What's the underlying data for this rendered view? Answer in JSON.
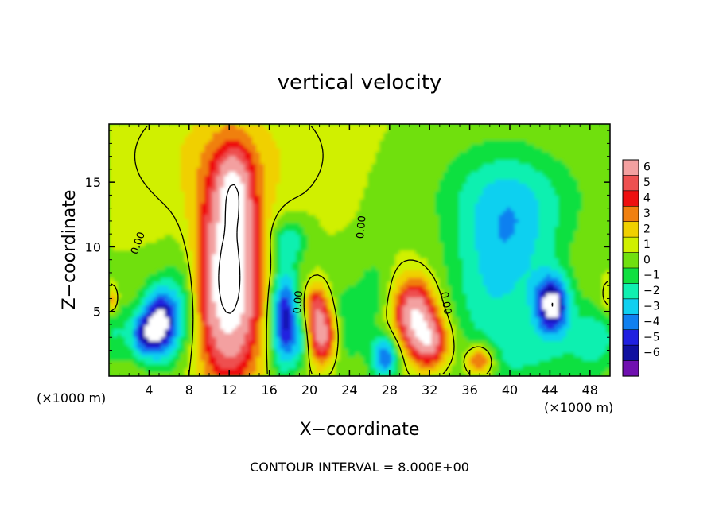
{
  "chart_data": {
    "type": "heatmap",
    "title": "vertical velocity",
    "xlabel": "X−coordinate",
    "ylabel": "Z−coordinate",
    "x_unit_label": "(×1000 m)",
    "y_unit_label": "(×1000 m)",
    "footer": "CONTOUR INTERVAL = 8.000E+00",
    "xlim": [
      0,
      50
    ],
    "ylim": [
      0,
      19.5
    ],
    "x_ticks": [
      4,
      8,
      12,
      16,
      20,
      24,
      28,
      32,
      36,
      40,
      44,
      48
    ],
    "x_tick_labels": [
      "4",
      "8",
      "12",
      "16",
      "20",
      "24",
      "28",
      "32",
      "36",
      "40",
      "44",
      "48"
    ],
    "y_ticks": [
      5,
      10,
      15
    ],
    "y_tick_labels": [
      "5",
      "10",
      "15"
    ],
    "contour_labels": [
      {
        "text": "0.00",
        "x": 3.2,
        "y": 10.2,
        "rotate": -70
      },
      {
        "text": "0.00",
        "x": 19.2,
        "y": 5.7,
        "rotate": -85
      },
      {
        "text": "0.00",
        "x": 25.5,
        "y": 11.5,
        "rotate": -85
      },
      {
        "text": "0.00",
        "x": 33.3,
        "y": 5.6,
        "rotate": 80
      }
    ],
    "colorbar": {
      "levels": [
        "6",
        "5",
        "4",
        "3",
        "2",
        "1",
        "0",
        "−1",
        "−2",
        "−3",
        "−4",
        "−5",
        "−6"
      ],
      "colors": [
        "#f3a0a0",
        "#ee5050",
        "#ee1010",
        "#f08010",
        "#f0d000",
        "#d0f000",
        "#70e010",
        "#10e040",
        "#10f0b0",
        "#10d0f0",
        "#1080f0",
        "#2020e0",
        "#1010a0",
        "#7010b0"
      ]
    },
    "fields": {
      "background": "#30e010",
      "cells": [
        {
          "x": 12,
          "y": 7.5,
          "sx": 2.2,
          "sy": 5.5,
          "v": 9
        },
        {
          "x": 12.5,
          "y": 14.5,
          "sx": 1.2,
          "sy": 2.2,
          "v": 3.5
        },
        {
          "x": 12,
          "y": 17,
          "sx": 6,
          "sy": 3,
          "v": 1.2
        },
        {
          "x": 5.2,
          "y": 4.2,
          "sx": 1.3,
          "sy": 2.0,
          "v": -7
        },
        {
          "x": 3.4,
          "y": 3.2,
          "sx": 1.0,
          "sy": 1.3,
          "v": -4
        },
        {
          "x": 0.4,
          "y": 3.5,
          "sx": 1.2,
          "sy": 2.0,
          "v": -2
        },
        {
          "x": 0.2,
          "y": 5.8,
          "sx": 0.5,
          "sy": 0.8,
          "v": 3
        },
        {
          "x": 7.5,
          "y": 6,
          "sx": 1.2,
          "sy": 3,
          "v": -2
        },
        {
          "x": 17.5,
          "y": 4.5,
          "sx": 1.0,
          "sy": 2.8,
          "v": -6.5
        },
        {
          "x": 19.2,
          "y": 2.5,
          "sx": 0.7,
          "sy": 1.2,
          "v": -2
        },
        {
          "x": 21.3,
          "y": 3.3,
          "sx": 1.0,
          "sy": 1.6,
          "v": 6.5
        },
        {
          "x": 20.7,
          "y": 5.8,
          "sx": 0.8,
          "sy": 1.0,
          "v": 3
        },
        {
          "x": 18,
          "y": 10.5,
          "sx": 1.3,
          "sy": 1.2,
          "v": -2.5
        },
        {
          "x": 23.5,
          "y": 4,
          "sx": 1.5,
          "sy": 2.5,
          "v": -1.8
        },
        {
          "x": 27.5,
          "y": 1.5,
          "sx": 1.0,
          "sy": 1.2,
          "v": -5
        },
        {
          "x": 26.5,
          "y": 6.5,
          "sx": 1.2,
          "sy": 2.0,
          "v": -1.5
        },
        {
          "x": 30.5,
          "y": 5,
          "sx": 1.5,
          "sy": 1.8,
          "v": 6.5
        },
        {
          "x": 32,
          "y": 2.6,
          "sx": 1.4,
          "sy": 1.4,
          "v": 5.5
        },
        {
          "x": 37,
          "y": 1.2,
          "sx": 1.0,
          "sy": 0.9,
          "v": 4.5
        },
        {
          "x": 38.5,
          "y": 7.5,
          "sx": 3.5,
          "sy": 6,
          "v": -2.8
        },
        {
          "x": 41.5,
          "y": 11.5,
          "sx": 3.5,
          "sy": 3.2,
          "v": -1.6
        },
        {
          "x": 40,
          "y": 14.5,
          "sx": 6,
          "sy": 2.5,
          "v": -1.2
        },
        {
          "x": 44.2,
          "y": 5.5,
          "sx": 1.2,
          "sy": 1.6,
          "v": -7
        },
        {
          "x": 48.5,
          "y": 3,
          "sx": 2.0,
          "sy": 2.0,
          "v": -2.5
        },
        {
          "x": 49.8,
          "y": 6,
          "sx": 0.6,
          "sy": 1.0,
          "v": 1.5
        },
        {
          "x": 43,
          "y": 1.5,
          "sx": 3,
          "sy": 1.5,
          "v": -1.2
        }
      ]
    }
  }
}
